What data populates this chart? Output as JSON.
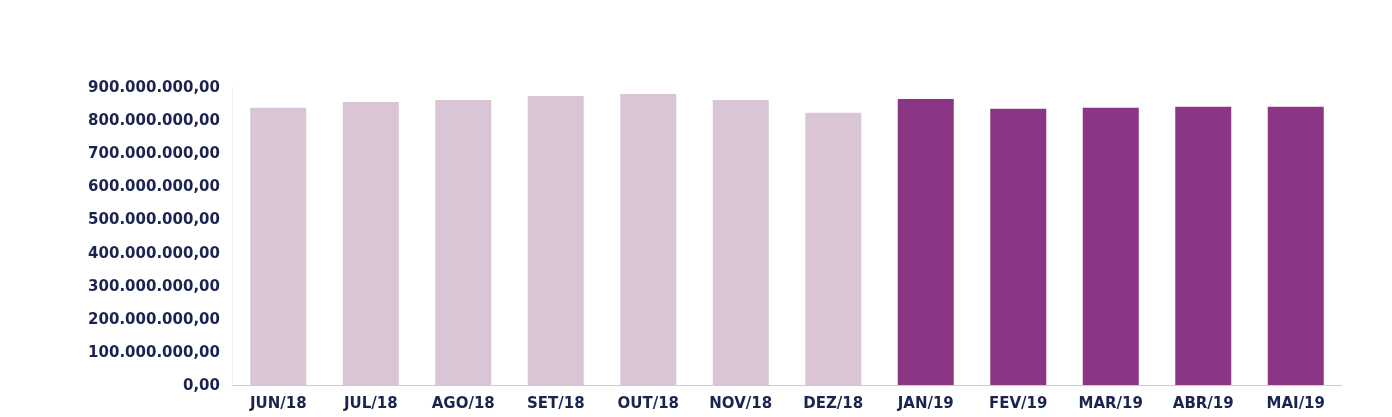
{
  "chart_data": {
    "type": "bar",
    "categories": [
      "JUN/18",
      "JUL/18",
      "AGO/18",
      "SET/18",
      "OUT/18",
      "NOV/18",
      "DEZ/18",
      "JAN/19",
      "FEV/19",
      "MAR/19",
      "ABR/19",
      "MAI/19"
    ],
    "values": [
      837000000,
      855000000,
      861000000,
      873000000,
      879000000,
      861000000,
      822000000,
      864000000,
      834000000,
      837000000,
      840000000,
      840000000
    ],
    "colors": [
      "#d9c5d6",
      "#d9c5d6",
      "#d9c5d6",
      "#d9c5d6",
      "#d9c5d6",
      "#d9c5d6",
      "#d9c5d6",
      "#8b3585",
      "#8b3585",
      "#8b3585",
      "#8b3585",
      "#8b3585"
    ],
    "ylim": [
      0,
      900000000
    ],
    "yticks": [
      {
        "value": 0,
        "label": "0,00"
      },
      {
        "value": 100000000,
        "label": "100.000.000,00"
      },
      {
        "value": 200000000,
        "label": "200.000.000,00"
      },
      {
        "value": 300000000,
        "label": "300.000.000,00"
      },
      {
        "value": 400000000,
        "label": "400.000.000,00"
      },
      {
        "value": 500000000,
        "label": "500.000.000,00"
      },
      {
        "value": 600000000,
        "label": "600.000.000,00"
      },
      {
        "value": 700000000,
        "label": "700.000.000,00"
      },
      {
        "value": 800000000,
        "label": "800.000.000,00"
      },
      {
        "value": 900000000,
        "label": "900.000.000,00"
      }
    ],
    "grid": false
  }
}
